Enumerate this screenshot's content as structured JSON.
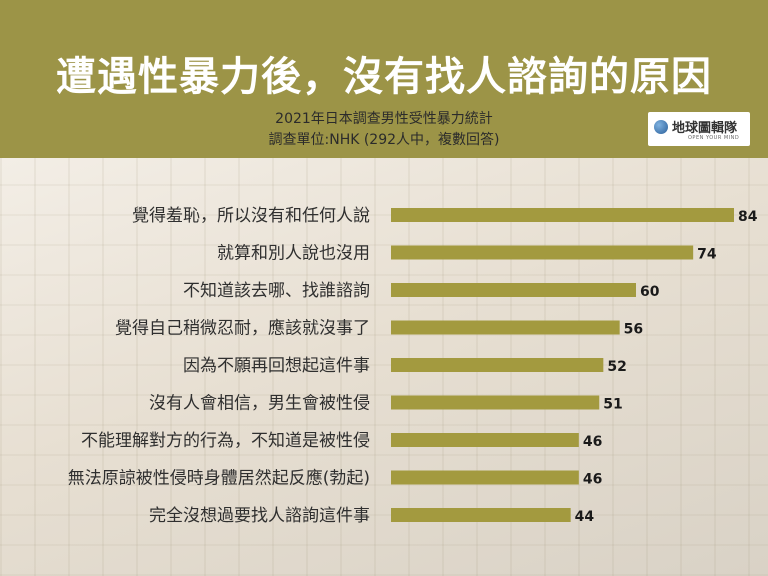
{
  "title": "遭遇性暴力後，沒有找人諮詢的原因",
  "subtitle_line1": "2021年日本調查男性受性暴力統計",
  "subtitle_line2": "調查單位:NHK (292人中，複數回答)",
  "logo": {
    "name": "地球圖輯隊",
    "tagline": "OPEN YOUR MIND",
    "icon": "globe-icon"
  },
  "colors": {
    "header": "#9c9447",
    "bar": "#a39a3f"
  },
  "chart_data": {
    "type": "bar",
    "orientation": "horizontal",
    "categories": [
      "覺得羞恥，所以沒有和任何人說",
      "就算和別人說也沒用",
      "不知道該去哪、找誰諮詢",
      "覺得自己稍微忍耐，應該就沒事了",
      "因為不願再回想起這件事",
      "沒有人會相信，男生會被性侵",
      "不能理解對方的行為，不知道是被性侵",
      "無法原諒被性侵時身體居然起反應(勃起)",
      "完全沒想過要找人諮詢這件事"
    ],
    "values": [
      84,
      74,
      60,
      56,
      52,
      51,
      46,
      46,
      44
    ],
    "xlim": [
      0,
      84
    ],
    "grid": false
  }
}
